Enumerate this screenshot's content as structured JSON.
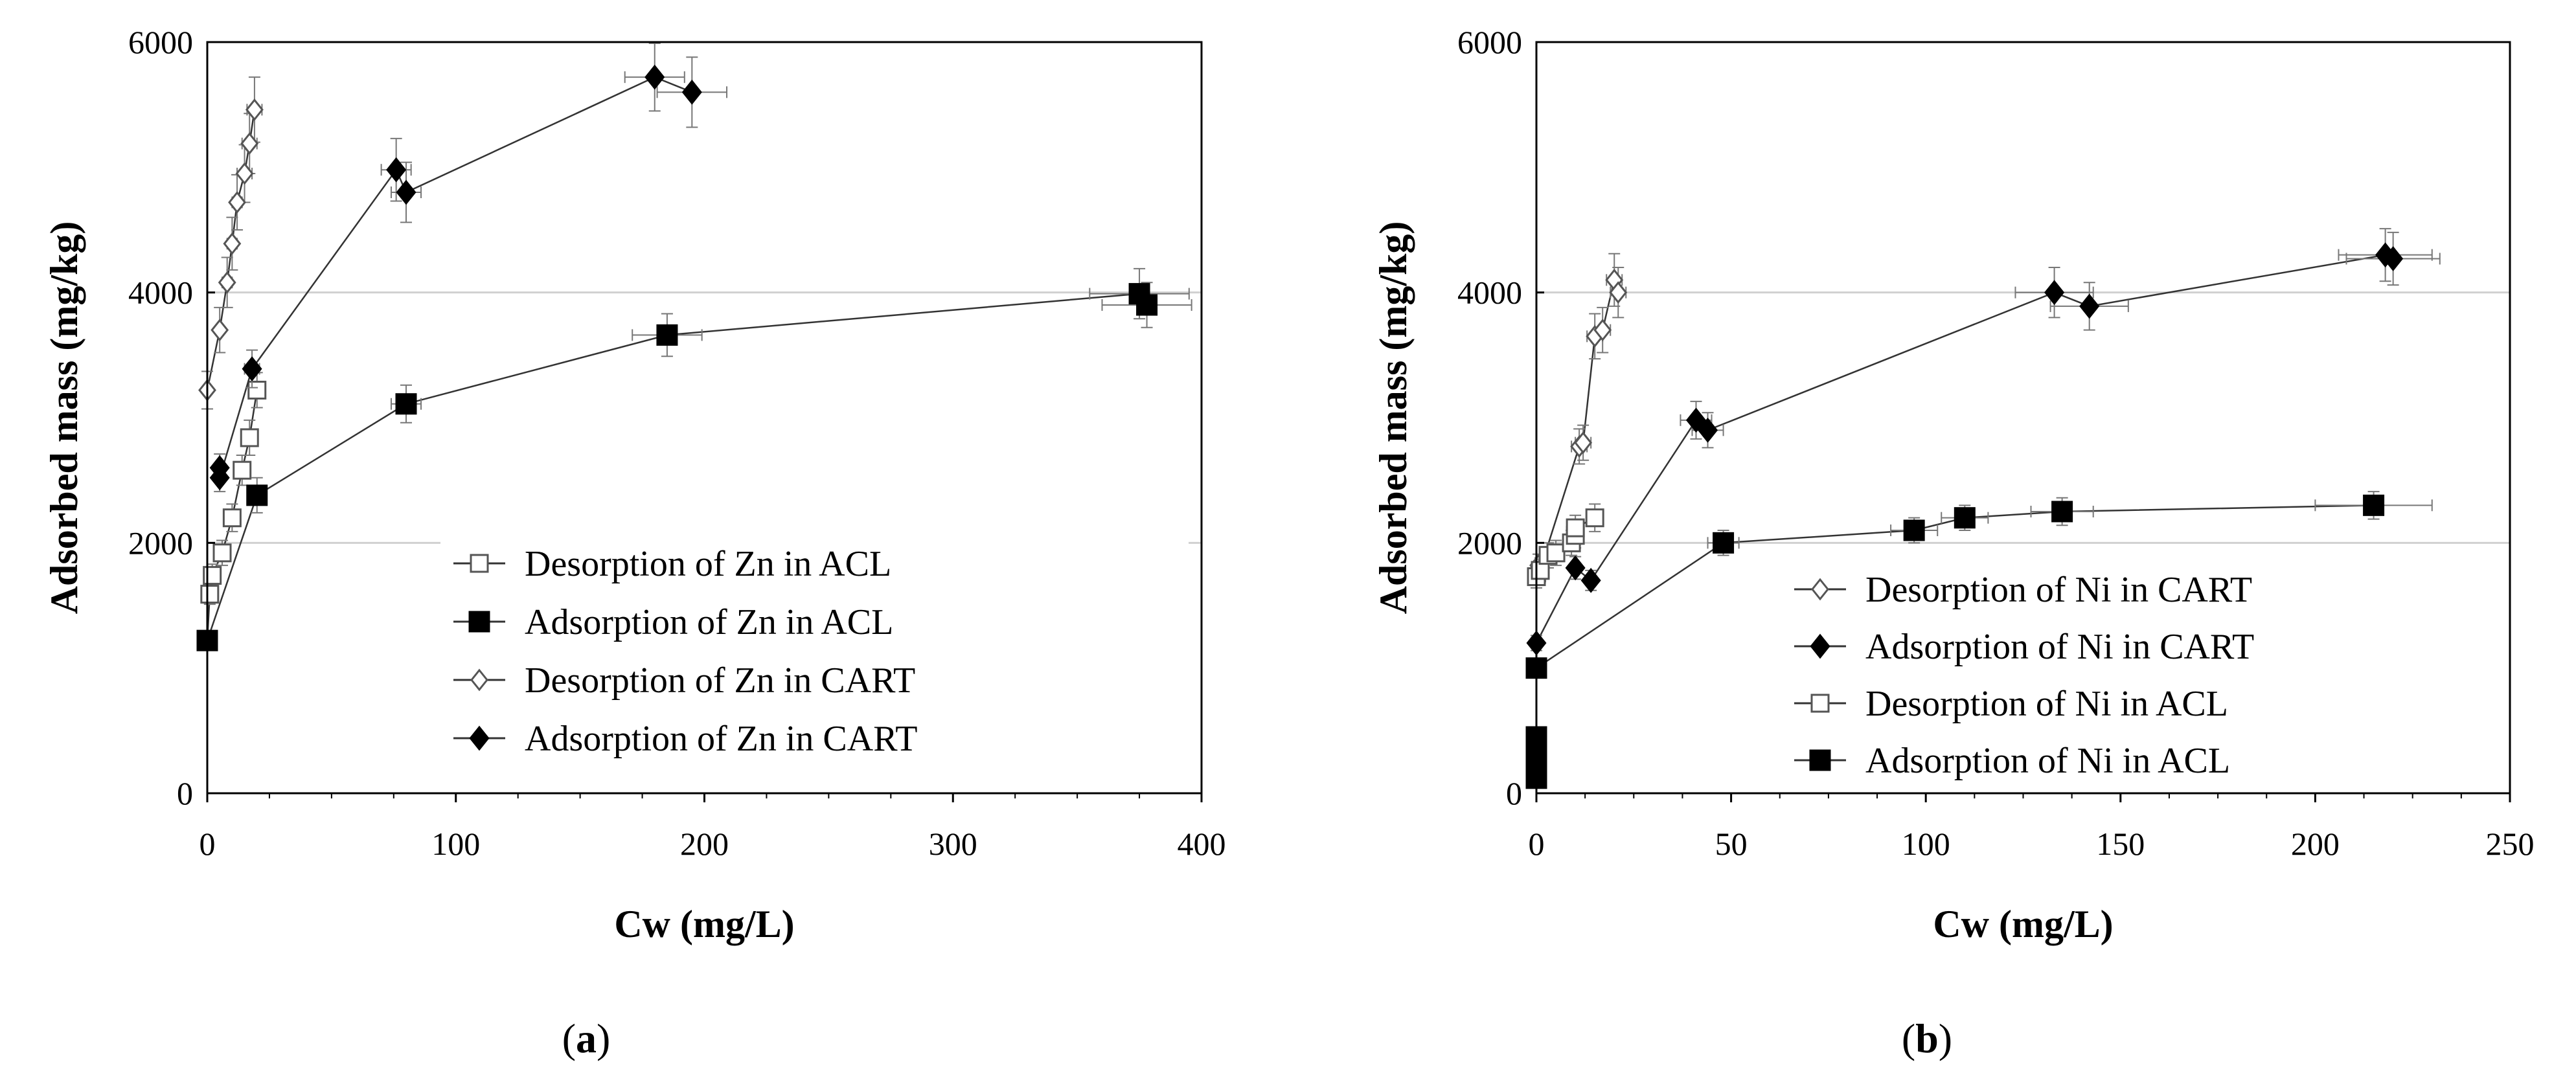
{
  "chart_data": [
    {
      "type": "scatter",
      "panel_label": "a",
      "xlabel": "Cw (mg/L)",
      "ylabel": "Adsorbed mass (mg/kg)",
      "xlim": [
        0,
        400
      ],
      "ylim": [
        0,
        6000
      ],
      "xticks": [
        0,
        100,
        200,
        300,
        400
      ],
      "yticks": [
        0,
        2000,
        4000,
        6000
      ],
      "grid_y": [
        2000,
        4000
      ],
      "legend_position": "lower-right",
      "series": [
        {
          "name": "Desorption of Zn in ACL",
          "marker": "square-open",
          "x": [
            20,
            17,
            14,
            10,
            6,
            2,
            1,
            0
          ],
          "y": [
            3220,
            2840,
            2580,
            2200,
            1920,
            1740,
            1590,
            1220
          ],
          "xerr": [
            3,
            3,
            2,
            2,
            2,
            1,
            1,
            1
          ],
          "yerr": [
            140,
            140,
            120,
            110,
            100,
            90,
            80,
            70
          ]
        },
        {
          "name": "Adsorption of Zn in ACL",
          "marker": "square-filled",
          "x": [
            0,
            20,
            80,
            185,
            375,
            378
          ],
          "y": [
            1220,
            2380,
            3110,
            3660,
            3990,
            3900
          ],
          "xerr": [
            1,
            3,
            6,
            14,
            20,
            18
          ],
          "yerr": [
            70,
            140,
            150,
            170,
            200,
            180
          ]
        },
        {
          "name": "Desorption of Zn in CART",
          "marker": "diamond-open",
          "x": [
            19,
            17,
            15,
            12,
            10,
            8,
            5,
            0
          ],
          "y": [
            5460,
            5190,
            4950,
            4720,
            4390,
            4080,
            3700,
            3220
          ],
          "xerr": [
            3,
            3,
            3,
            2,
            2,
            2,
            1,
            1
          ],
          "yerr": [
            260,
            240,
            230,
            220,
            210,
            200,
            180,
            150
          ]
        },
        {
          "name": "Adsorption of Zn in CART",
          "marker": "diamond-filled",
          "x": [
            5,
            5,
            18,
            76,
            80,
            180,
            195
          ],
          "y": [
            2600,
            2520,
            3390,
            4980,
            4800,
            5720,
            5600
          ],
          "xerr": [
            1,
            1,
            3,
            6,
            6,
            12,
            14
          ],
          "yerr": [
            110,
            110,
            150,
            250,
            240,
            270,
            280
          ]
        }
      ]
    },
    {
      "type": "scatter",
      "panel_label": "b",
      "xlabel": "Cw (mg/L)",
      "ylabel": "Adsorbed mass (mg/kg)",
      "xlim": [
        0,
        250
      ],
      "ylim": [
        0,
        6000
      ],
      "xticks": [
        0,
        50,
        100,
        150,
        200,
        250
      ],
      "yticks": [
        0,
        2000,
        4000,
        6000
      ],
      "grid_y": [
        2000,
        4000
      ],
      "legend_position": "lower-right",
      "series": [
        {
          "name": "Desorption of Ni in CART",
          "marker": "diamond-open",
          "x": [
            0.5,
            1,
            11,
            12,
            15,
            17,
            20,
            21
          ],
          "y": [
            1820,
            1790,
            2770,
            2800,
            3650,
            3700,
            4100,
            4000
          ],
          "xerr": [
            0.5,
            0.5,
            2,
            2,
            2,
            2,
            2,
            2
          ],
          "yerr": [
            90,
            90,
            140,
            140,
            180,
            180,
            210,
            200
          ]
        },
        {
          "name": "Adsorption of Ni in CART",
          "marker": "diamond-filled",
          "x": [
            0,
            10,
            14,
            41,
            44,
            133,
            142,
            218,
            220
          ],
          "y": [
            1200,
            1800,
            1700,
            2980,
            2900,
            4000,
            3890,
            4300,
            4270
          ],
          "xerr": [
            0.5,
            1,
            1,
            4,
            4,
            10,
            10,
            12,
            12
          ],
          "yerr": [
            60,
            90,
            80,
            150,
            140,
            200,
            190,
            210,
            210
          ]
        },
        {
          "name": "Desorption of Ni in ACL",
          "marker": "square-open",
          "x": [
            0,
            1,
            3,
            5,
            9,
            10,
            10,
            15
          ],
          "y": [
            1730,
            1780,
            1900,
            1920,
            2000,
            2060,
            2120,
            2200
          ],
          "xerr": [
            0.5,
            0.5,
            1,
            1,
            1,
            1,
            1,
            2
          ],
          "yerr": [
            90,
            90,
            100,
            100,
            100,
            100,
            100,
            110
          ]
        },
        {
          "name": "Adsorption of Ni in ACL",
          "marker": "square-filled",
          "x": [
            0,
            0,
            0,
            0,
            0,
            0,
            48,
            97,
            110,
            135,
            215
          ],
          "y": [
            120,
            180,
            250,
            320,
            450,
            1000,
            2000,
            2100,
            2200,
            2250,
            2300
          ],
          "xerr": [
            0.3,
            0.3,
            0.3,
            0.3,
            0.3,
            0.5,
            4,
            6,
            6,
            8,
            15
          ],
          "yerr": [
            20,
            20,
            20,
            20,
            30,
            50,
            100,
            100,
            100,
            110,
            110
          ]
        }
      ]
    }
  ]
}
